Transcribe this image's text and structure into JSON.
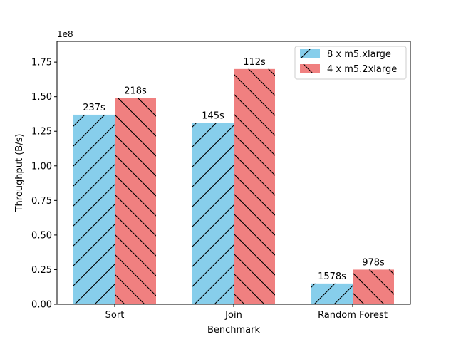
{
  "chart_data": {
    "type": "bar",
    "xlabel": "Benchmark",
    "ylabel": "Throughput (B/s)",
    "y_offset_label": "1e8",
    "y_scale": 100000000,
    "ylim": [
      0,
      190000000
    ],
    "yticks": [
      0,
      25000000,
      50000000,
      75000000,
      100000000,
      125000000,
      150000000,
      175000000
    ],
    "ytick_labels": [
      "0.00",
      "0.25",
      "0.50",
      "0.75",
      "1.00",
      "1.25",
      "1.50",
      "1.75"
    ],
    "categories": [
      "Sort",
      "Join",
      "Random Forest"
    ],
    "grid": false,
    "legend_position": "top-right",
    "series": [
      {
        "name": "8 x m5.xlarge",
        "color": "#87CEEB",
        "hatch": "forward-diagonal",
        "values": [
          137000000,
          131000000,
          15000000
        ],
        "labels": [
          "237s",
          "145s",
          "1578s"
        ]
      },
      {
        "name": "4 x m5.2xlarge",
        "color": "#F08080",
        "hatch": "back-diagonal",
        "values": [
          149000000,
          170000000,
          25000000
        ],
        "labels": [
          "218s",
          "112s",
          "978s"
        ]
      }
    ]
  }
}
